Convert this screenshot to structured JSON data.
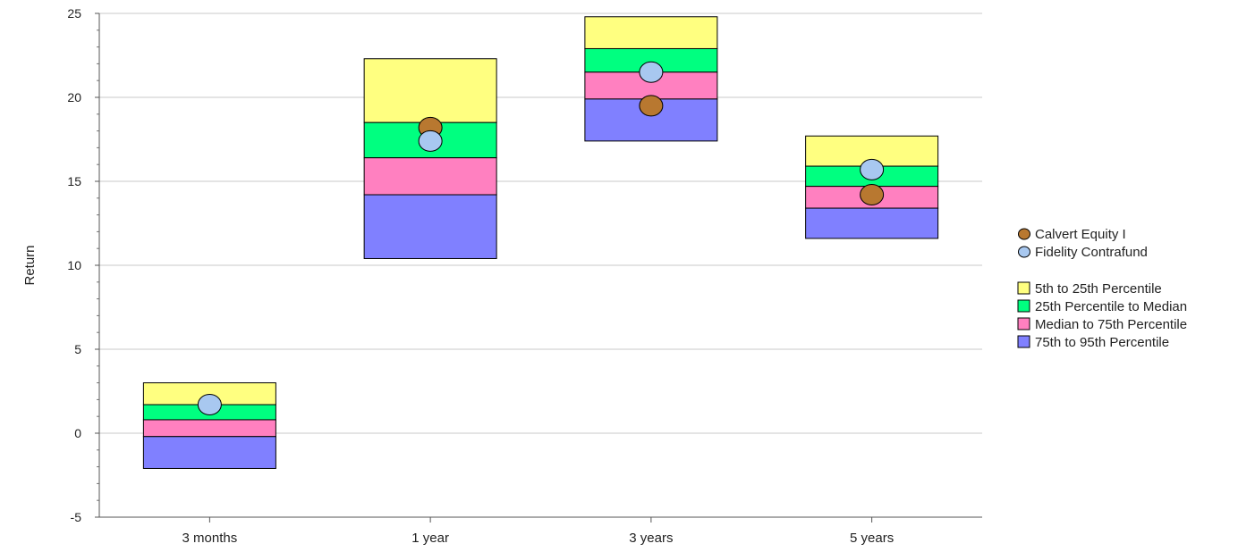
{
  "chart_data": {
    "type": "floating-bar",
    "ylabel": "Return",
    "xlabel": "",
    "ylim": [
      -5,
      25
    ],
    "yticks": [
      25,
      20,
      15,
      10,
      5,
      0,
      -5
    ],
    "grid": true,
    "legend_position": "right",
    "categories": [
      "3 months",
      "1 year",
      "3 years",
      "5 years"
    ],
    "percentile_bands": [
      {
        "name": "5th to 25th Percentile",
        "color": "#ffff80",
        "lower": [
          1.7,
          18.5,
          22.9,
          15.9
        ],
        "upper": [
          3.0,
          22.3,
          24.8,
          17.7
        ]
      },
      {
        "name": "25th Percentile to Median",
        "color": "#00ff80",
        "lower": [
          0.8,
          16.4,
          21.5,
          14.7
        ],
        "upper": [
          1.7,
          18.5,
          22.9,
          15.9
        ]
      },
      {
        "name": "Median to 75th Percentile",
        "color": "#ff80c0",
        "lower": [
          -0.2,
          14.2,
          19.9,
          13.4
        ],
        "upper": [
          0.8,
          16.4,
          21.5,
          14.7
        ]
      },
      {
        "name": "75th to 95th Percentile",
        "color": "#8080ff",
        "lower": [
          -2.1,
          10.4,
          17.4,
          11.6
        ],
        "upper": [
          -0.2,
          14.2,
          19.9,
          13.4
        ]
      }
    ],
    "series": [
      {
        "name": "Calvert Equity I",
        "color": "#b87830",
        "values": [
          null,
          18.2,
          19.5,
          14.2
        ]
      },
      {
        "name": "Fidelity Contrafund",
        "color": "#a8c8f0",
        "values": [
          1.7,
          17.4,
          21.5,
          15.7
        ]
      }
    ]
  }
}
